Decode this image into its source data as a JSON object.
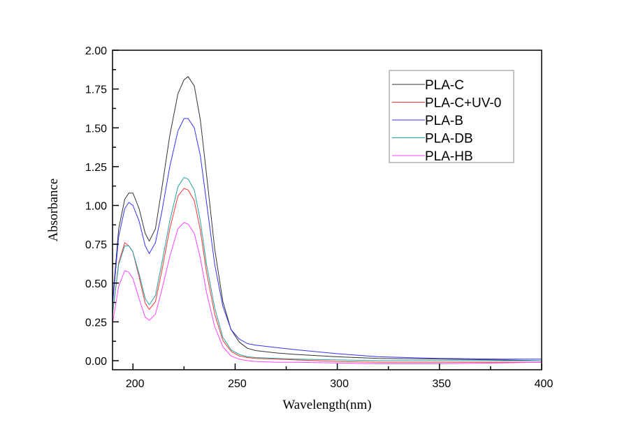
{
  "chart_data": {
    "type": "line",
    "title": "",
    "xlabel": "Wavelength(nm)",
    "ylabel": "Absorbance",
    "xlim": [
      190,
      400
    ],
    "ylim": [
      -0.06,
      2.0
    ],
    "xticks": [
      200,
      250,
      300,
      350,
      400
    ],
    "yticks": [
      0.0,
      0.25,
      0.5,
      0.75,
      1.0,
      1.25,
      1.5,
      1.75,
      2.0
    ],
    "xtick_labels": [
      "200",
      "250",
      "300",
      "350",
      "400"
    ],
    "ytick_labels": [
      "0.00",
      "0.25",
      "0.50",
      "0.75",
      "1.00",
      "1.25",
      "1.50",
      "1.75",
      "2.00"
    ],
    "grid": false,
    "legend_position": "top-right",
    "x": [
      190,
      193,
      196,
      198,
      200,
      203,
      206,
      208,
      211,
      214,
      218,
      222,
      225,
      227,
      230,
      233,
      236,
      240,
      244,
      248,
      252,
      256,
      260,
      270,
      280,
      300,
      320,
      350,
      380,
      400
    ],
    "series": [
      {
        "name": "PLA-C",
        "color": "#333333",
        "values": [
          0.38,
          0.85,
          1.04,
          1.08,
          1.08,
          0.98,
          0.82,
          0.77,
          0.85,
          1.1,
          1.45,
          1.72,
          1.81,
          1.83,
          1.77,
          1.55,
          1.2,
          0.72,
          0.38,
          0.2,
          0.12,
          0.08,
          0.065,
          0.05,
          0.04,
          0.025,
          0.015,
          0.01,
          0.005,
          0.0
        ]
      },
      {
        "name": "PLA-C+UV-0",
        "color": "#ff3333",
        "values": [
          0.3,
          0.63,
          0.76,
          0.74,
          0.7,
          0.54,
          0.37,
          0.33,
          0.38,
          0.57,
          0.85,
          1.06,
          1.11,
          1.1,
          1.03,
          0.84,
          0.57,
          0.3,
          0.13,
          0.06,
          0.03,
          0.02,
          0.015,
          0.01,
          0.005,
          -0.005,
          -0.01,
          -0.01,
          -0.01,
          -0.01
        ]
      },
      {
        "name": "PLA-B",
        "color": "#3333ff",
        "values": [
          0.36,
          0.8,
          0.98,
          1.02,
          1.0,
          0.9,
          0.74,
          0.69,
          0.76,
          0.95,
          1.25,
          1.48,
          1.56,
          1.56,
          1.5,
          1.32,
          1.02,
          0.62,
          0.35,
          0.2,
          0.14,
          0.11,
          0.1,
          0.085,
          0.07,
          0.045,
          0.025,
          0.015,
          0.01,
          0.01
        ]
      },
      {
        "name": "PLA-DB",
        "color": "#22a0a0",
        "values": [
          0.3,
          0.62,
          0.74,
          0.74,
          0.7,
          0.56,
          0.4,
          0.36,
          0.42,
          0.62,
          0.9,
          1.12,
          1.18,
          1.17,
          1.1,
          0.9,
          0.62,
          0.34,
          0.15,
          0.07,
          0.04,
          0.025,
          0.02,
          0.015,
          0.01,
          0.005,
          0.0,
          0.0,
          0.0,
          0.0
        ]
      },
      {
        "name": "PLA-HB",
        "color": "#ff44ff",
        "values": [
          0.24,
          0.48,
          0.58,
          0.57,
          0.53,
          0.4,
          0.28,
          0.26,
          0.3,
          0.45,
          0.67,
          0.85,
          0.89,
          0.88,
          0.82,
          0.66,
          0.44,
          0.22,
          0.09,
          0.03,
          0.01,
          0.0,
          -0.005,
          -0.01,
          -0.01,
          -0.015,
          -0.02,
          -0.02,
          -0.015,
          -0.01
        ]
      }
    ]
  }
}
